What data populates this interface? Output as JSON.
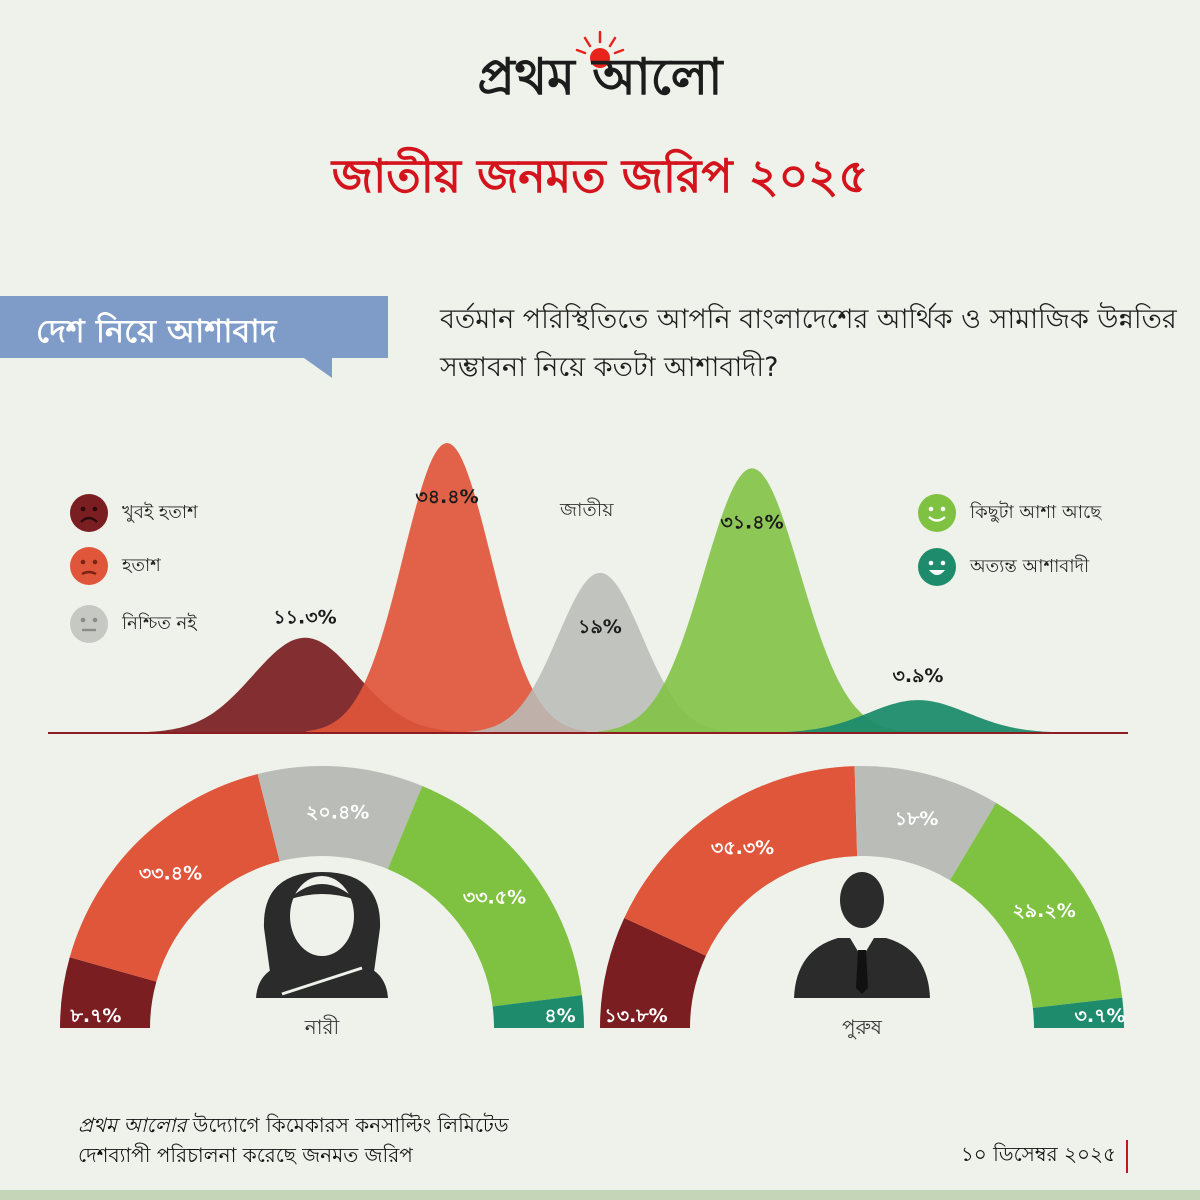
{
  "brand": "প্রথম আলো",
  "title": "জাতীয় জনমত জরিপ ২০২৫",
  "section_tag": "দেশ নিয়ে আশাবাদ",
  "question": "বর্তমান পরিস্থিতিতে আপনি বাংলাদেশের আর্থিক ও সামাজিক উন্নতির সম্ভাবনা নিয়ে কতটা আশাবাদী?",
  "footer": {
    "note_brand": "প্রথম আলোর",
    "note_rest": " উদ্যোগে কিমেকারস কনসাল্টিং লিমিটেড",
    "note_line2": "দেশব্যাপী পরিচালনা করেছে জনমত জরিপ",
    "date": "১০ ডিসেম্বর ২০২৫"
  },
  "colors": {
    "very_disappointed": "#7a1e22",
    "disappointed": "#e0563a",
    "not_sure": "#b9bcb7",
    "somewhat_hopeful": "#7fc241",
    "very_hopeful": "#1e8c6c",
    "title_red": "#d4141c"
  },
  "chart_data": [
    {
      "type": "area",
      "title": "জাতীয়",
      "categories": [
        "খুবই হতাশ",
        "হতাশ",
        "নিশ্চিত নই",
        "কিছুটা আশা আছে",
        "অত্যন্ত আশাবাদী"
      ],
      "values": [
        11.3,
        34.4,
        19,
        31.4,
        3.9
      ],
      "labels": [
        "১১.৩%",
        "৩৪.৪%",
        "১৯%",
        "৩১.৪%",
        "৩.৯%"
      ],
      "icons": [
        "very-sad-face-icon",
        "sad-face-icon",
        "neutral-face-icon",
        "smile-face-icon",
        "big-smile-face-icon"
      ]
    },
    {
      "type": "pie",
      "subtype": "semi-donut",
      "title": "নারী",
      "categories": [
        "খুবই হতাশ",
        "হতাশ",
        "নিশ্চিত নই",
        "কিছুটা আশা আছে",
        "অত্যন্ত আশাবাদী"
      ],
      "values": [
        8.7,
        33.4,
        20.4,
        33.5,
        4
      ],
      "labels": [
        "৮.৭%",
        "৩৩.৪%",
        "২০.৪%",
        "৩৩.৫%",
        "৪%"
      ],
      "icon": "woman-silhouette-icon"
    },
    {
      "type": "pie",
      "subtype": "semi-donut",
      "title": "পুরুষ",
      "categories": [
        "খুবই হতাশ",
        "হতাশ",
        "নিশ্চিত নই",
        "কিছুটা আশা আছে",
        "অত্যন্ত আশাবাদী"
      ],
      "values": [
        13.8,
        35.3,
        18,
        29.2,
        3.7
      ],
      "labels": [
        "১৩.৮%",
        "৩৫.৩%",
        "১৮%",
        "২৯.২%",
        "৩.৭%"
      ],
      "icon": "man-silhouette-icon"
    }
  ]
}
